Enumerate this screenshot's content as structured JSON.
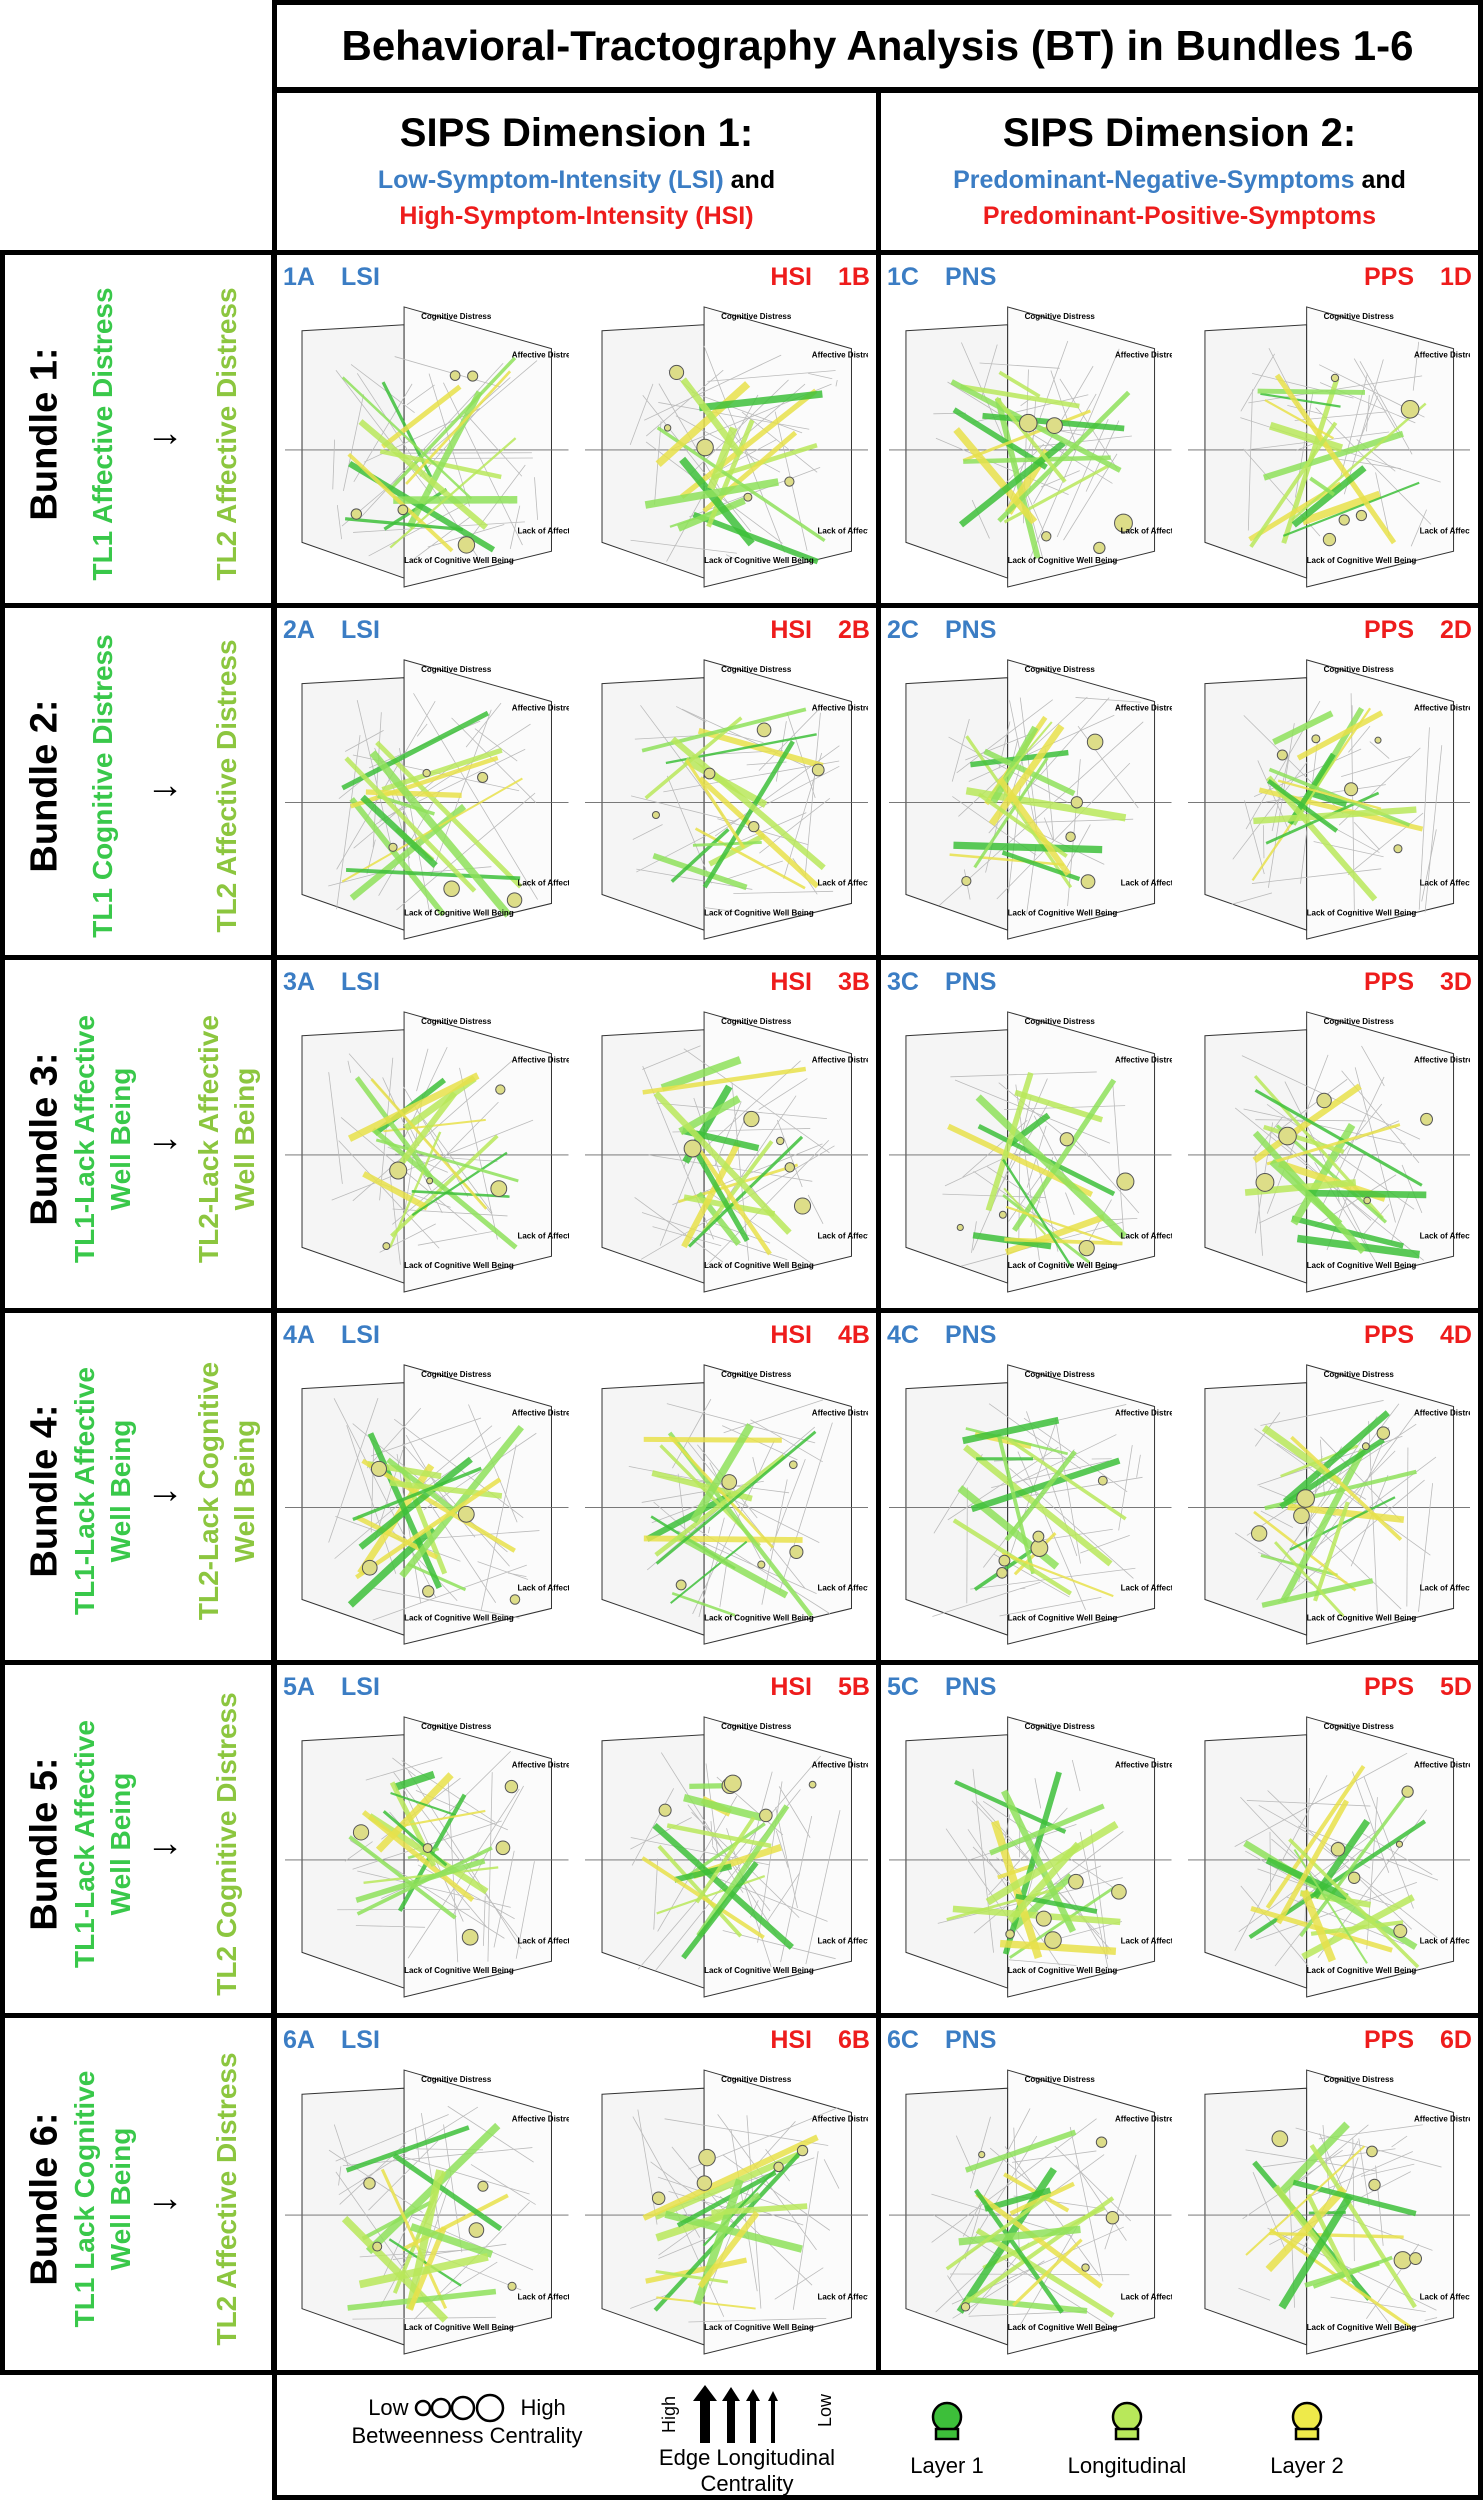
{
  "title": "Behavioral-Tractography Analysis (BT) in Bundles 1-6",
  "dim1": {
    "heading": "SIPS Dimension 1:",
    "line1_a": "Low-Symptom-Intensity (LSI)",
    "line1_b": " and",
    "line2": "High-Symptom-Intensity (HSI)"
  },
  "dim2": {
    "heading": "SIPS Dimension 2:",
    "line1_a": "Predominant-Negative-Symptoms",
    "line1_b": " and",
    "line2": "Predominant-Positive-Symptoms"
  },
  "graph_labels": {
    "cog_distress": "Cognitive Distress",
    "aff_distress": "Affective Distress",
    "lack_cog": "Lack of Cognitive Well Being",
    "lack_aff": "Lack of Affective Well Being"
  },
  "colors": {
    "layer1": "#3dbf3a",
    "longitudinal": "#b8e85a",
    "layer2": "#e8e04a",
    "blue": "#3b7dc4",
    "red": "#ee1c1c"
  },
  "bundles": [
    {
      "name": "Bundle 1:",
      "tl1": "TL1 Affective Distress",
      "tl2": "TL2 Affective Distress",
      "tags": [
        "1A",
        "LSI",
        "HSI",
        "1B",
        "1C",
        "PNS",
        "PPS",
        "1D"
      ]
    },
    {
      "name": "Bundle 2:",
      "tl1": "TL1 Cognitive Distress",
      "tl2": "TL2 Affective Distress",
      "tags": [
        "2A",
        "LSI",
        "HSI",
        "2B",
        "2C",
        "PNS",
        "PPS",
        "2D"
      ]
    },
    {
      "name": "Bundle 3:",
      "tl1a": "TL1-Lack Affective",
      "tl1b": "Well Being",
      "tl2a": "TL2-Lack Affective",
      "tl2b": "Well Being",
      "tags": [
        "3A",
        "LSI",
        "HSI",
        "3B",
        "3C",
        "PNS",
        "PPS",
        "3D"
      ]
    },
    {
      "name": "Bundle 4:",
      "tl1a": "TL1-Lack Affective",
      "tl1b": "Well Being",
      "tl2a": "TL2-Lack Cognitive",
      "tl2b": "Well Being",
      "tags": [
        "4A",
        "LSI",
        "HSI",
        "4B",
        "4C",
        "PNS",
        "PPS",
        "4D"
      ]
    },
    {
      "name": "Bundle 5:",
      "tl1a": "TL1-Lack Affective",
      "tl1b": "Well Being",
      "tl2": "TL2 Cognitive Distress",
      "tags": [
        "5A",
        "LSI",
        "HSI",
        "5B",
        "5C",
        "PNS",
        "PPS",
        "5D"
      ]
    },
    {
      "name": "Bundle 6:",
      "tl1a": "TL1 Lack Cognitive",
      "tl1b": "Well Being",
      "tl2": "TL2 Affective Distress",
      "tags": [
        "6A",
        "LSI",
        "HSI",
        "6B",
        "6C",
        "PNS",
        "PPS",
        "6D"
      ]
    }
  ],
  "legend": {
    "betweenness_low": "Low",
    "betweenness_high": "High",
    "betweenness_label": "Betweenness Centrality",
    "edge_high": "High",
    "edge_low": "Low",
    "edge_label1": "Edge Longitudinal",
    "edge_label2": "Centrality",
    "layer1": "Layer 1",
    "longitudinal": "Longitudinal",
    "layer2": "Layer 2"
  }
}
